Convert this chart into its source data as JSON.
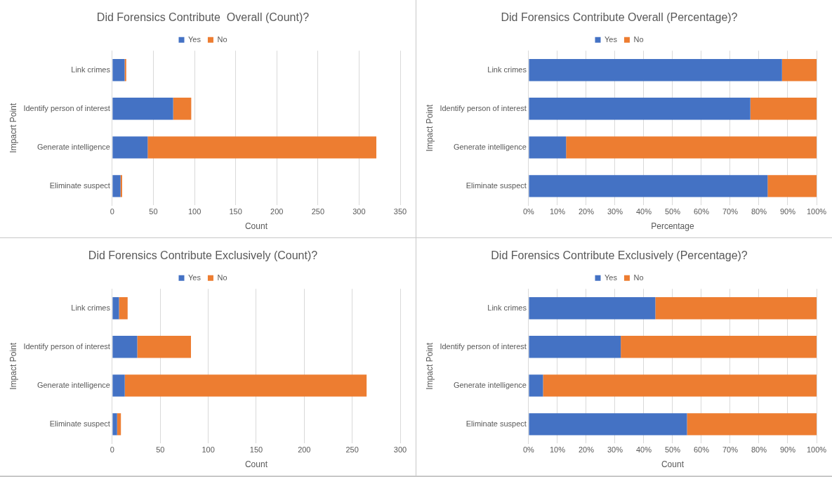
{
  "chart_data": [
    {
      "type": "bar",
      "orientation": "horizontal",
      "stacked": true,
      "title": "Did Forensics Contribute  Overall (Count)?",
      "xlabel": "Count",
      "ylabel": "Impacrt Point",
      "categories": [
        "Link crimes",
        "Identify person of interest",
        "Generate intelligence",
        "Eliminate suspect"
      ],
      "series": [
        {
          "name": "Yes",
          "color": "#4472c4",
          "values": [
            15,
            74,
            43,
            10
          ]
        },
        {
          "name": "No",
          "color": "#ed7d31",
          "values": [
            2,
            22,
            278,
            2
          ]
        }
      ],
      "xlim": [
        0,
        350
      ],
      "xticks": [
        0,
        50,
        100,
        150,
        200,
        250,
        300,
        350
      ],
      "grid": "x",
      "legend": "top"
    },
    {
      "type": "bar",
      "orientation": "horizontal",
      "stacked": true,
      "title": "Did Forensics Contribute Overall (Percentage)?",
      "xlabel": "Percentage",
      "ylabel": "Impact Point",
      "categories": [
        "Link crimes",
        "Identify person of interest",
        "Generate intelligence",
        "Eliminate suspect"
      ],
      "series": [
        {
          "name": "Yes",
          "color": "#4472c4",
          "values": [
            88,
            77,
            13,
            83
          ]
        },
        {
          "name": "No",
          "color": "#ed7d31",
          "values": [
            12,
            23,
            87,
            17
          ]
        }
      ],
      "xlim": [
        0,
        100
      ],
      "xticks": [
        {
          "value": 0,
          "label": "0%"
        },
        {
          "value": 10,
          "label": "10%"
        },
        {
          "value": 20,
          "label": "20%"
        },
        {
          "value": 30,
          "label": "30%"
        },
        {
          "value": 40,
          "label": "40%"
        },
        {
          "value": 50,
          "label": "50%"
        },
        {
          "value": 60,
          "label": "60%"
        },
        {
          "value": 70,
          "label": "70%"
        },
        {
          "value": 80,
          "label": "80%"
        },
        {
          "value": 90,
          "label": "90%"
        },
        {
          "value": 100,
          "label": "100%"
        }
      ],
      "grid": "x",
      "legend": "top"
    },
    {
      "type": "bar",
      "orientation": "horizontal",
      "stacked": true,
      "title": "Did Forensics Contribute Exclusively (Count)?",
      "xlabel": "Count",
      "ylabel": "Impact Point",
      "categories": [
        "Link crimes",
        "Identify person of interest",
        "Generate intelligence",
        "Eliminate suspect"
      ],
      "series": [
        {
          "name": "Yes",
          "color": "#4472c4",
          "values": [
            7,
            26,
            13,
            5
          ]
        },
        {
          "name": "No",
          "color": "#ed7d31",
          "values": [
            9,
            56,
            252,
            4
          ]
        }
      ],
      "xlim": [
        0,
        300
      ],
      "xticks": [
        0,
        50,
        100,
        150,
        200,
        250,
        300
      ],
      "grid": "x",
      "legend": "top"
    },
    {
      "type": "bar",
      "orientation": "horizontal",
      "stacked": true,
      "title": "Did Forensics Contribute Exclusively (Percentage)?",
      "xlabel": "Count",
      "ylabel": "Impact Point",
      "categories": [
        "Link crimes",
        "Identify person of interest",
        "Generate intelligence",
        "Eliminate suspect"
      ],
      "series": [
        {
          "name": "Yes",
          "color": "#4472c4",
          "values": [
            44,
            32,
            5,
            55
          ]
        },
        {
          "name": "No",
          "color": "#ed7d31",
          "values": [
            56,
            68,
            95,
            45
          ]
        }
      ],
      "xlim": [
        0,
        100
      ],
      "xticks": [
        {
          "value": 0,
          "label": "0%"
        },
        {
          "value": 10,
          "label": "10%"
        },
        {
          "value": 20,
          "label": "20%"
        },
        {
          "value": 30,
          "label": "30%"
        },
        {
          "value": 40,
          "label": "40%"
        },
        {
          "value": 50,
          "label": "50%"
        },
        {
          "value": 60,
          "label": "60%"
        },
        {
          "value": 70,
          "label": "70%"
        },
        {
          "value": 80,
          "label": "80%"
        },
        {
          "value": 90,
          "label": "90%"
        },
        {
          "value": 100,
          "label": "100%"
        }
      ],
      "grid": "x",
      "legend": "top"
    }
  ]
}
